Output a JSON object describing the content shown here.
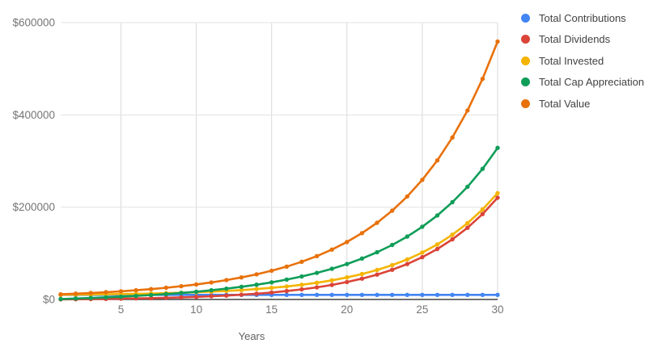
{
  "chart_data": {
    "type": "line",
    "title": "",
    "x_label": "Years",
    "ylabel": "",
    "xlim": [
      1,
      30
    ],
    "ylim": [
      0,
      600000
    ],
    "grid": true,
    "legend_position": "right",
    "x": [
      1,
      2,
      3,
      4,
      5,
      6,
      7,
      8,
      9,
      10,
      11,
      12,
      13,
      14,
      15,
      16,
      17,
      18,
      19,
      20,
      21,
      22,
      23,
      24,
      25,
      26,
      27,
      28,
      29,
      30
    ],
    "x_ticks": [
      5,
      10,
      15,
      20,
      25,
      30
    ],
    "y_ticks": [
      {
        "value": 0,
        "label": "$0"
      },
      {
        "value": 200000,
        "label": "$200000"
      },
      {
        "value": 400000,
        "label": "$400000"
      },
      {
        "value": 600000,
        "label": "$600000"
      }
    ],
    "series": [
      {
        "name": "Total Contributions",
        "color": "#4285F4",
        "values": [
          10000,
          10000,
          10000,
          10000,
          10000,
          10000,
          10000,
          10000,
          10000,
          10000,
          10000,
          10000,
          10000,
          10000,
          10000,
          10000,
          10000,
          10000,
          10000,
          10000,
          10000,
          10000,
          10000,
          10000,
          10000,
          10000,
          10000,
          10000,
          10000,
          10000
        ]
      },
      {
        "name": "Total Dividends",
        "color": "#DB4437",
        "values": [
          228,
          499,
          822,
          1206,
          1663,
          2207,
          2855,
          3625,
          4542,
          5633,
          6931,
          8476,
          10315,
          12503,
          15107,
          18205,
          21892,
          26280,
          31501,
          37714,
          45108,
          53907,
          64378,
          76838,
          91665,
          109309,
          130305,
          155291,
          185025,
          220408
        ]
      },
      {
        "name": "Total Invested",
        "color": "#F4B400",
        "values": [
          10228,
          10499,
          10822,
          11206,
          11663,
          12207,
          12855,
          13625,
          14542,
          15633,
          16931,
          18476,
          20315,
          22503,
          25107,
          28205,
          31892,
          36280,
          41501,
          47714,
          55108,
          63907,
          74378,
          86838,
          101665,
          119309,
          140305,
          165291,
          195025,
          230408
        ]
      },
      {
        "name": "Total Cap Appreciation",
        "color": "#0F9D58",
        "values": [
          950,
          2012,
          3201,
          4533,
          6028,
          7709,
          9601,
          11734,
          14143,
          16868,
          19956,
          23460,
          27444,
          31981,
          37157,
          43072,
          49843,
          57608,
          66527,
          76790,
          88618,
          102272,
          118059,
          136341,
          157543,
          182168,
          210808,
          244164,
          283062,
          328480
        ]
      },
      {
        "name": "Total Value",
        "color": "#E8710A",
        "values": [
          11178,
          12511,
          14023,
          15739,
          17691,
          19916,
          22456,
          25359,
          28685,
          32501,
          36887,
          41936,
          47759,
          54484,
          62264,
          71277,
          81735,
          93888,
          108028,
          124504,
          143726,
          166179,
          192437,
          223179,
          259208,
          301477,
          351113,
          409455,
          478087,
          558888
        ]
      }
    ],
    "axis_text_color": "#757575",
    "gridline_color": "#dadada",
    "baseline_color": "#424242"
  }
}
